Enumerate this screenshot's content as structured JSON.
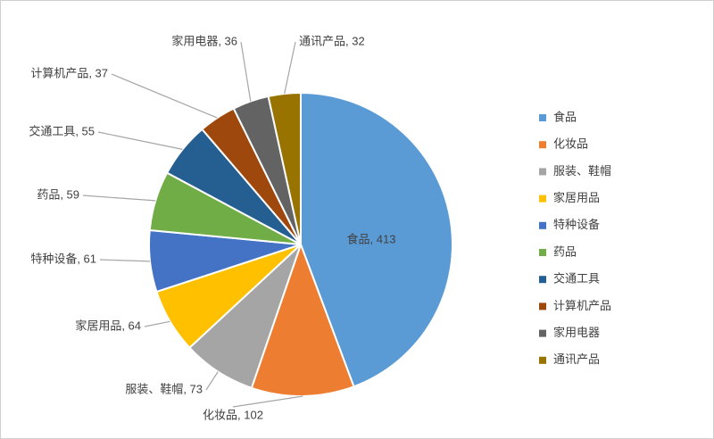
{
  "chart_data": {
    "type": "pie",
    "title": "",
    "legend_position": "right",
    "categories": [
      "食品",
      "化妆品",
      "服装、鞋帽",
      "家居用品",
      "特种设备",
      "药品",
      "交通工具",
      "计算机产品",
      "家用电器",
      "通讯产品"
    ],
    "values": [
      413,
      102,
      73,
      64,
      61,
      59,
      55,
      37,
      36,
      32
    ],
    "colors": [
      "#5b9bd5",
      "#ed7d31",
      "#a5a5a5",
      "#ffc000",
      "#4472c4",
      "#70ad47",
      "#255e91",
      "#9e480e",
      "#636363",
      "#997300"
    ],
    "data_labels": [
      "食品, 413",
      "化妆品, 102",
      "服装、鞋帽, 73",
      "家居用品, 64",
      "特种设备, 61",
      "药品, 59",
      "交通工具, 55",
      "计算机产品, 37",
      "家用电器, 36",
      "通讯产品, 32"
    ]
  }
}
